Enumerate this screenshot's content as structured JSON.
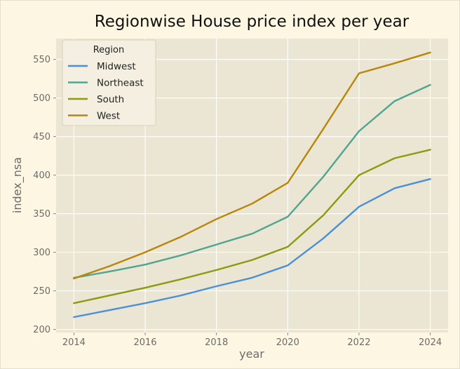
{
  "chart_data": {
    "type": "line",
    "title": "Regionwise House price index  per year",
    "xlabel": "year",
    "ylabel": "index_nsa",
    "x": [
      2014,
      2015,
      2016,
      2017,
      2018,
      2019,
      2020,
      2021,
      2022,
      2023,
      2024
    ],
    "xlim": [
      2013.5,
      2024.5
    ],
    "ylim": [
      196,
      577
    ],
    "xticks": [
      2014,
      2016,
      2018,
      2020,
      2022,
      2024
    ],
    "yticks": [
      200,
      250,
      300,
      350,
      400,
      450,
      500,
      550
    ],
    "grid": true,
    "legend": {
      "title": "Region",
      "placement": "top-left"
    },
    "series": [
      {
        "name": "Midwest",
        "color": "#4a90d9",
        "values": [
          216,
          225,
          234,
          244,
          256,
          267,
          283,
          318,
          359,
          383,
          395
        ]
      },
      {
        "name": "Northeast",
        "color": "#4fa590",
        "values": [
          267,
          275,
          284,
          296,
          310,
          324,
          346,
          398,
          457,
          496,
          517
        ]
      },
      {
        "name": "South",
        "color": "#8c9a10",
        "values": [
          234,
          244,
          254,
          265,
          277,
          290,
          307,
          348,
          400,
          422,
          433
        ]
      },
      {
        "name": "West",
        "color": "#b8860b",
        "values": [
          266,
          282,
          300,
          320,
          343,
          363,
          390,
          460,
          532,
          545,
          559
        ]
      }
    ]
  }
}
